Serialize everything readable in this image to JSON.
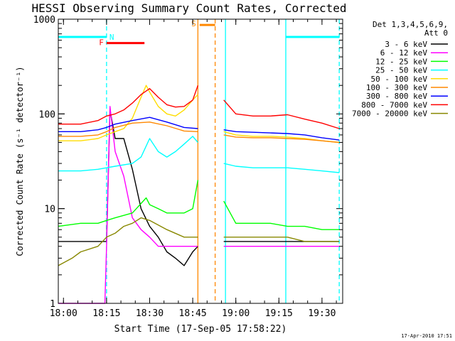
{
  "chart_data": {
    "type": "line",
    "title": "HESSI Observing Summary Count Rates, Corrected",
    "xlabel": "Start Time (17-Sep-05 17:58:22)",
    "ylabel": "Corrected Count Rate (s⁻¹ detector⁻¹)",
    "yscale": "log",
    "xlim": [
      17.97,
      19.62
    ],
    "ylim": [
      1,
      1000
    ],
    "x_unit": "hours UT",
    "x_ticks": [
      {
        "value": 18.0,
        "label": "18:00"
      },
      {
        "value": 18.25,
        "label": "18:15"
      },
      {
        "value": 18.5,
        "label": "18:30"
      },
      {
        "value": 18.75,
        "label": "18:45"
      },
      {
        "value": 19.0,
        "label": "19:00"
      },
      {
        "value": 19.25,
        "label": "19:15"
      },
      {
        "value": 19.5,
        "label": "19:30"
      }
    ],
    "y_ticks": [
      {
        "value": 1,
        "label": "1"
      },
      {
        "value": 10,
        "label": "10"
      },
      {
        "value": 100,
        "label": "100"
      },
      {
        "value": 1000,
        "label": "1000"
      }
    ],
    "legend_header": [
      "Det 1,3,4,5,6,9,",
      "Att 0"
    ],
    "legend_position": "right",
    "footer": "17-Apr-2010 17:51",
    "flag_labels": [
      {
        "label": "F",
        "color": "#ff0000"
      },
      {
        "label": "N",
        "color": "#00ffff"
      },
      {
        "label": "S",
        "color": "#ff8800"
      }
    ],
    "flag_bars": [
      {
        "flag": "N",
        "color": "#00ffff",
        "level": 650,
        "x": [
          17.97,
          18.25
        ]
      },
      {
        "flag": "N",
        "color": "#00ffff",
        "level": 650,
        "x": [
          19.29,
          19.6
        ]
      },
      {
        "flag": "F",
        "color": "#ff0000",
        "level": 560,
        "x": [
          18.25,
          18.47
        ]
      },
      {
        "flag": "S",
        "color": "#ff8800",
        "level": 870,
        "x": [
          18.79,
          18.88
        ]
      }
    ],
    "vertical_markers": [
      {
        "x": 18.25,
        "color": "#00ffff",
        "style": "dashed"
      },
      {
        "x": 18.78,
        "color": "#ff8800",
        "style": "solid"
      },
      {
        "x": 18.88,
        "color": "#ff8800",
        "style": "dashed"
      },
      {
        "x": 18.94,
        "color": "#00ffff",
        "style": "solid"
      },
      {
        "x": 19.29,
        "color": "#00ffff",
        "style": "solid"
      },
      {
        "x": 19.6,
        "color": "#00ffff",
        "style": "dashed"
      }
    ],
    "gap": [
      18.78,
      18.93
    ],
    "series": [
      {
        "name": "3 - 6 keV",
        "color": "#000000",
        "x": [
          17.97,
          18.25,
          18.27,
          18.3,
          18.35,
          18.4,
          18.45,
          18.5,
          18.55,
          18.6,
          18.65,
          18.7,
          18.75,
          18.78,
          18.93,
          19.0,
          19.1,
          19.2,
          19.3,
          19.4,
          19.5,
          19.6
        ],
        "y": [
          4.5,
          4.5,
          110,
          55,
          55,
          26,
          10,
          6.5,
          5,
          3.5,
          3,
          2.5,
          3.5,
          4,
          4.5,
          4.5,
          4.5,
          4.5,
          4.5,
          4.5,
          4.5,
          4.5
        ]
      },
      {
        "name": "6 - 12 keV",
        "color": "#ff00ff",
        "x": [
          17.97,
          18.24,
          18.25,
          18.27,
          18.3,
          18.35,
          18.4,
          18.45,
          18.5,
          18.55,
          18.6,
          18.7,
          18.78,
          18.93,
          19.0,
          19.1,
          19.2,
          19.3,
          19.4,
          19.5,
          19.6
        ],
        "y": [
          1,
          1,
          4,
          120,
          40,
          22,
          8,
          6,
          5,
          4,
          4,
          4,
          4,
          4,
          4,
          4,
          4,
          4,
          4,
          4,
          4
        ]
      },
      {
        "name": "12 - 25 keV",
        "color": "#00ff00",
        "x": [
          17.97,
          18.1,
          18.2,
          18.25,
          18.3,
          18.4,
          18.48,
          18.5,
          18.55,
          18.6,
          18.65,
          18.7,
          18.75,
          18.78,
          18.93,
          19.0,
          19.1,
          19.2,
          19.3,
          19.4,
          19.5,
          19.6
        ],
        "y": [
          6.5,
          7,
          7,
          7.5,
          8,
          9,
          13,
          11,
          10,
          9,
          9,
          9,
          10,
          20,
          12,
          7,
          7,
          7,
          6.5,
          6.5,
          6,
          6
        ]
      },
      {
        "name": "25 - 50 keV",
        "color": "#00ffff",
        "x": [
          17.97,
          18.1,
          18.2,
          18.3,
          18.4,
          18.45,
          18.5,
          18.55,
          18.6,
          18.65,
          18.7,
          18.75,
          18.78,
          18.93,
          19.0,
          19.1,
          19.2,
          19.3,
          19.4,
          19.5,
          19.6
        ],
        "y": [
          25,
          25,
          26,
          28,
          30,
          35,
          55,
          40,
          35,
          40,
          48,
          58,
          50,
          30,
          28,
          27,
          27,
          27,
          26,
          25,
          24
        ]
      },
      {
        "name": "50 - 100 keV",
        "color": "#ffdd00",
        "x": [
          17.97,
          18.1,
          18.2,
          18.25,
          18.3,
          18.35,
          18.4,
          18.45,
          18.48,
          18.5,
          18.55,
          18.6,
          18.65,
          18.7,
          18.75,
          18.78,
          18.93,
          19.0,
          19.1,
          19.2,
          19.3,
          19.4,
          19.5,
          19.6
        ],
        "y": [
          52,
          52,
          55,
          60,
          65,
          70,
          90,
          150,
          200,
          170,
          120,
          100,
          95,
          110,
          140,
          160,
          65,
          60,
          58,
          58,
          57,
          55,
          52,
          50
        ]
      },
      {
        "name": "100 - 300 keV",
        "color": "#ff8800",
        "x": [
          17.97,
          18.1,
          18.2,
          18.25,
          18.3,
          18.4,
          18.5,
          18.6,
          18.7,
          18.78,
          18.93,
          19.0,
          19.1,
          19.2,
          19.3,
          19.4,
          19.5,
          19.6
        ],
        "y": [
          58,
          58,
          60,
          65,
          72,
          80,
          82,
          75,
          66,
          65,
          60,
          57,
          56,
          56,
          55,
          54,
          52,
          50
        ]
      },
      {
        "name": "300 - 800 keV",
        "color": "#0000ff",
        "x": [
          17.97,
          18.1,
          18.2,
          18.25,
          18.3,
          18.4,
          18.5,
          18.6,
          18.7,
          18.78,
          18.93,
          19.0,
          19.1,
          19.2,
          19.3,
          19.4,
          19.5,
          19.6
        ],
        "y": [
          65,
          65,
          68,
          72,
          78,
          85,
          92,
          82,
          72,
          70,
          68,
          65,
          64,
          63,
          62,
          60,
          56,
          53
        ]
      },
      {
        "name": "800 - 7000 keV",
        "color": "#ff0000",
        "x": [
          17.97,
          18.1,
          18.2,
          18.25,
          18.3,
          18.35,
          18.4,
          18.45,
          18.5,
          18.55,
          18.6,
          18.65,
          18.7,
          18.75,
          18.78,
          18.93,
          19.0,
          19.1,
          19.2,
          19.3,
          19.4,
          19.5,
          19.6
        ],
        "y": [
          78,
          78,
          85,
          95,
          100,
          110,
          130,
          160,
          185,
          150,
          125,
          118,
          120,
          140,
          200,
          140,
          100,
          95,
          95,
          98,
          88,
          80,
          70
        ]
      },
      {
        "name": "7000 - 20000 keV",
        "color": "#888800",
        "x": [
          17.97,
          18.05,
          18.1,
          18.2,
          18.25,
          18.3,
          18.35,
          18.4,
          18.45,
          18.5,
          18.6,
          18.7,
          18.78,
          18.93,
          19.0,
          19.1,
          19.2,
          19.3,
          19.4,
          19.5,
          19.6
        ],
        "y": [
          2.5,
          3,
          3.5,
          4,
          5,
          5.5,
          6.5,
          7,
          8,
          7.5,
          6,
          5,
          5,
          5,
          5,
          5,
          5,
          5,
          4.5,
          4.5,
          4.5
        ]
      }
    ]
  }
}
